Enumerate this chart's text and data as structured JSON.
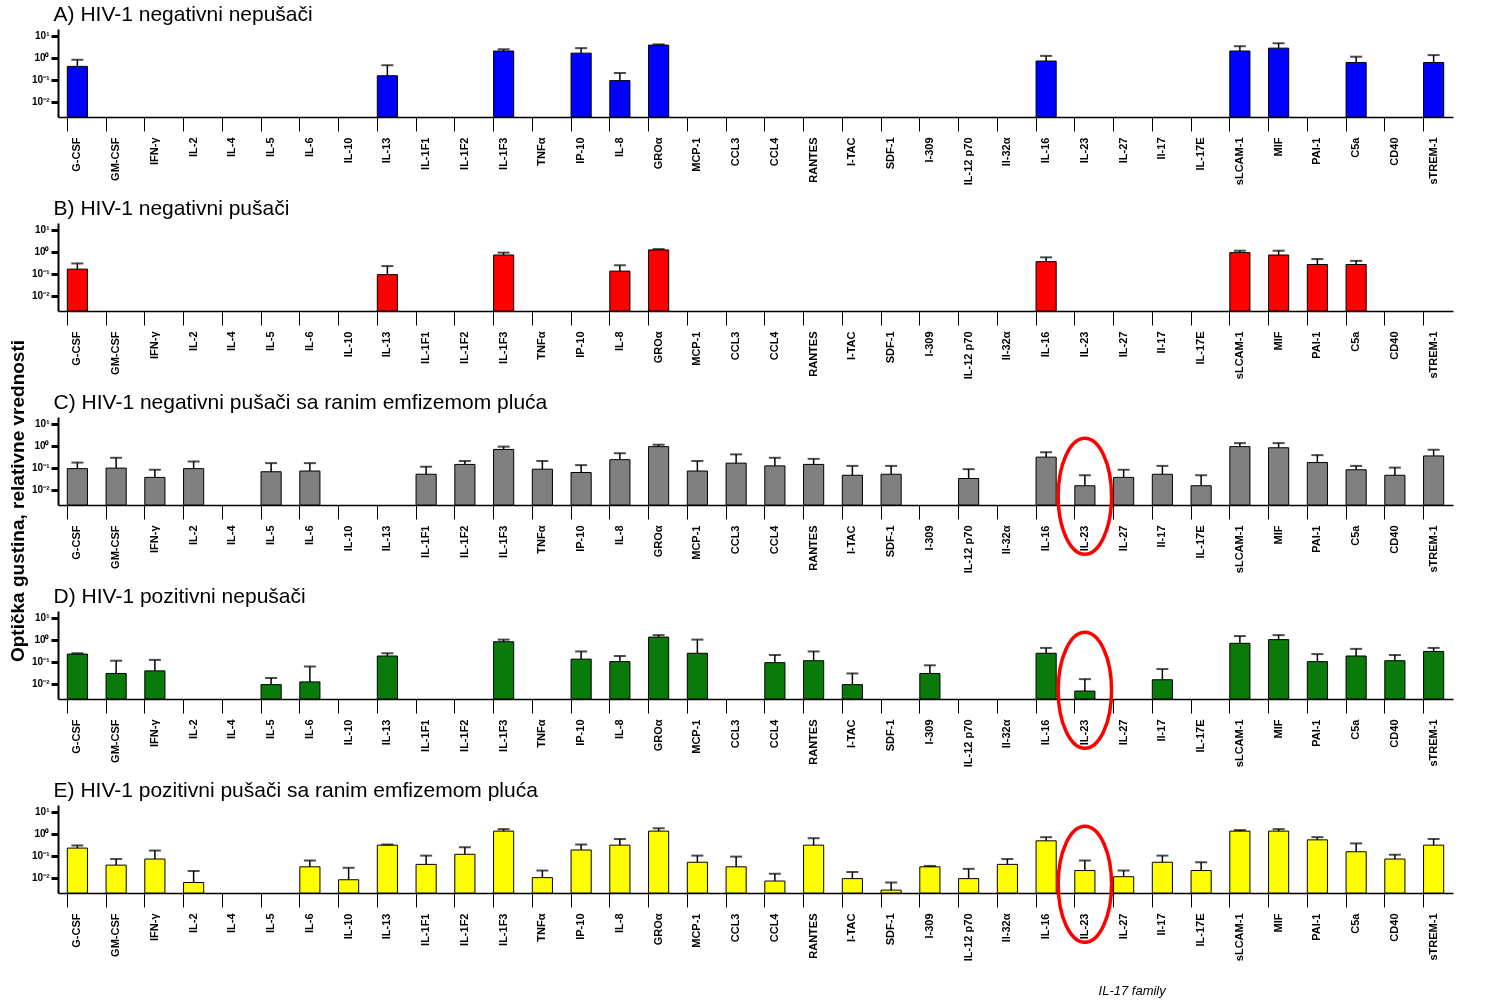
{
  "chart_data": [
    {
      "type": "bar",
      "title": "A) HIV-1 negativni nepušači",
      "categories": [
        "G-CSF",
        "GM-CSF",
        "IFN-γ",
        "IL-2",
        "IL-4",
        "IL-5",
        "IL-6",
        "IL-10",
        "IL-13",
        "IL-1F1",
        "IL-1F2",
        "IL-1F3",
        "TNFα",
        "IP-10",
        "IL-8",
        "GROα",
        "MCP-1",
        "CCL3",
        "CCL4",
        "RANTES",
        "I-TAC",
        "SDF-1",
        "I-309",
        "IL-12 p70",
        "Il-32α",
        "IL-16",
        "IL-23",
        "IL-27",
        "Il-17",
        "IL-17E",
        "sLCAM-1",
        "MIF",
        "PAI-1",
        "C5a",
        "CD40",
        "sTREM-1"
      ],
      "color": "#0000ff",
      "values": [
        0.4,
        null,
        null,
        null,
        null,
        null,
        null,
        null,
        0.15,
        null,
        null,
        2.0,
        null,
        1.6,
        0.09,
        3.7,
        null,
        null,
        null,
        null,
        null,
        null,
        null,
        null,
        null,
        0.7,
        null,
        null,
        null,
        null,
        2.0,
        2.7,
        null,
        0.6,
        null,
        0.6
      ],
      "errors": [
        [
          0.4,
          0.8
        ],
        null,
        null,
        null,
        null,
        null,
        null,
        null,
        [
          0.15,
          0.45
        ],
        null,
        null,
        [
          2.0,
          2.4
        ],
        null,
        [
          1.6,
          2.7
        ],
        [
          0.09,
          0.2
        ],
        [
          3.7,
          4
        ],
        null,
        null,
        null,
        null,
        null,
        null,
        null,
        null,
        null,
        [
          0.7,
          1.2
        ],
        null,
        null,
        null,
        null,
        [
          2.0,
          3.3
        ],
        [
          2.7,
          4.5
        ],
        null,
        [
          0.6,
          1.1
        ],
        null,
        [
          0.6,
          1.3
        ]
      ],
      "log": "y",
      "ylim": [
        0.002,
        20
      ],
      "yticks": [
        {
          "value": 10,
          "label": "10¹"
        },
        {
          "value": 1,
          "label": "10⁰"
        },
        {
          "value": 0.1,
          "label": "10⁻¹"
        },
        {
          "value": 0.01,
          "label": "10⁻²"
        }
      ]
    },
    {
      "type": "bar",
      "title": "B) HIV-1 negativni pušači",
      "categories": [
        "G-CSF",
        "GM-CSF",
        "IFN-γ",
        "IL-2",
        "IL-4",
        "IL-5",
        "IL-6",
        "IL-10",
        "IL-13",
        "IL-1F1",
        "IL-1F2",
        "IL-1F3",
        "TNFα",
        "IP-10",
        "IL-8",
        "GROα",
        "MCP-1",
        "CCL3",
        "CCL4",
        "RANTES",
        "I-TAC",
        "SDF-1",
        "I-309",
        "IL-12 p70",
        "Il-32α",
        "IL-16",
        "IL-23",
        "IL-27",
        "Il-17",
        "IL-17E",
        "sLCAM-1",
        "MIF",
        "PAI-1",
        "C5a",
        "CD40",
        "sTREM-1"
      ],
      "color": "#ff0000",
      "values": [
        0.16,
        null,
        null,
        null,
        null,
        null,
        null,
        null,
        0.09,
        null,
        null,
        0.7,
        null,
        null,
        0.13,
        1.2,
        null,
        null,
        null,
        null,
        null,
        null,
        null,
        null,
        null,
        0.35,
        null,
        null,
        null,
        null,
        0.9,
        0.7,
        0.26,
        0.26,
        null,
        null
      ],
      "errors": [
        [
          0.16,
          0.29
        ],
        null,
        null,
        null,
        null,
        null,
        null,
        null,
        [
          0.09,
          0.22
        ],
        null,
        null,
        [
          0.7,
          0.9
        ],
        null,
        null,
        [
          0.13,
          0.24
        ],
        [
          1.2,
          1.3
        ],
        null,
        null,
        null,
        null,
        null,
        null,
        null,
        null,
        null,
        [
          0.35,
          0.55
        ],
        null,
        null,
        null,
        null,
        [
          0.9,
          1.1
        ],
        [
          0.7,
          1.1
        ],
        [
          0.26,
          0.46
        ],
        [
          0.26,
          0.38
        ],
        null,
        null
      ],
      "log": "y",
      "ylim": [
        0.002,
        20
      ],
      "yticks": [
        {
          "value": 10,
          "label": "10¹"
        },
        {
          "value": 1,
          "label": "10⁰"
        },
        {
          "value": 0.1,
          "label": "10⁻¹"
        },
        {
          "value": 0.01,
          "label": "10⁻²"
        }
      ]
    },
    {
      "type": "bar",
      "title": "C) HIV-1 negativni pušači sa ranim emfizemom pluća",
      "ylabel": "Optička gustina, relativne vrednosti",
      "categories": [
        "G-CSF",
        "GM-CSF",
        "IFN-γ",
        "IL-2",
        "IL-4",
        "IL-5",
        "IL-6",
        "IL-10",
        "IL-13",
        "IL-1F1",
        "IL-1F2",
        "IL-1F3",
        "TNFα",
        "IP-10",
        "IL-8",
        "GROα",
        "MCP-1",
        "CCL3",
        "CCL4",
        "RANTES",
        "I-TAC",
        "SDF-1",
        "I-309",
        "IL-12 p70",
        "Il-32α",
        "IL-16",
        "IL-23",
        "IL-27",
        "Il-17",
        "IL-17E",
        "sLCAM-1",
        "MIF",
        "PAI-1",
        "C5a",
        "CD40",
        "sTREM-1"
      ],
      "color": "#808080",
      "values": [
        0.09,
        0.095,
        0.036,
        0.09,
        null,
        0.065,
        0.07,
        null,
        null,
        0.05,
        0.14,
        0.67,
        0.085,
        0.06,
        0.23,
        0.9,
        0.07,
        0.16,
        0.12,
        0.14,
        0.045,
        0.05,
        null,
        0.032,
        null,
        0.3,
        0.015,
        0.036,
        0.05,
        0.015,
        0.9,
        0.8,
        0.17,
        0.08,
        0.045,
        0.34
      ],
      "errors": [
        [
          0.09,
          0.17
        ],
        [
          0.095,
          0.28
        ],
        [
          0.036,
          0.08
        ],
        [
          0.09,
          0.19
        ],
        null,
        [
          0.065,
          0.16
        ],
        [
          0.07,
          0.16
        ],
        null,
        null,
        [
          0.05,
          0.11
        ],
        [
          0.14,
          0.2
        ],
        [
          0.67,
          0.9
        ],
        [
          0.085,
          0.2
        ],
        [
          0.06,
          0.13
        ],
        [
          0.23,
          0.45
        ],
        [
          0.9,
          1.1
        ],
        [
          0.07,
          0.2
        ],
        [
          0.16,
          0.4
        ],
        [
          0.12,
          0.28
        ],
        [
          0.14,
          0.25
        ],
        [
          0.045,
          0.12
        ],
        [
          0.05,
          0.12
        ],
        null,
        [
          0.032,
          0.085
        ],
        null,
        [
          0.3,
          0.5
        ],
        [
          0.015,
          0.045
        ],
        [
          0.036,
          0.08
        ],
        [
          0.05,
          0.12
        ],
        [
          0.015,
          0.045
        ],
        [
          0.9,
          1.3
        ],
        [
          0.8,
          1.3
        ],
        [
          0.17,
          0.37
        ],
        [
          0.08,
          0.12
        ],
        [
          0.045,
          0.1
        ],
        [
          0.34,
          0.65
        ]
      ],
      "log": "y",
      "ylim": [
        0.002,
        20
      ],
      "yticks": [
        {
          "value": 10,
          "label": "10¹"
        },
        {
          "value": 1,
          "label": "10⁰"
        },
        {
          "value": 0.1,
          "label": "10⁻¹"
        },
        {
          "value": 0.01,
          "label": "10⁻²"
        }
      ]
    },
    {
      "type": "bar",
      "title": "D) HIV-1 pozitivni nepušači",
      "categories": [
        "G-CSF",
        "GM-CSF",
        "IFN-γ",
        "IL-2",
        "IL-4",
        "IL-5",
        "IL-6",
        "IL-10",
        "IL-13",
        "IL-1F1",
        "IL-1F2",
        "IL-1F3",
        "TNFα",
        "IP-10",
        "IL-8",
        "GROα",
        "MCP-1",
        "CCL3",
        "CCL4",
        "RANTES",
        "I-TAC",
        "SDF-1",
        "I-309",
        "IL-12 p70",
        "Il-32α",
        "IL-16",
        "IL-23",
        "IL-27",
        "Il-17",
        "IL-17E",
        "sLCAM-1",
        "MIF",
        "PAI-1",
        "C5a",
        "CD40",
        "sTREM-1"
      ],
      "color": "#0a7a0a",
      "values": [
        0.22,
        0.029,
        0.038,
        null,
        null,
        0.009,
        0.012,
        null,
        0.18,
        null,
        null,
        0.8,
        null,
        0.13,
        0.1,
        1.3,
        0.24,
        null,
        0.09,
        0.11,
        0.009,
        null,
        0.029,
        null,
        null,
        0.24,
        0.0046,
        null,
        0.015,
        null,
        0.68,
        1.0,
        0.1,
        0.18,
        0.11,
        0.29
      ],
      "errors": [
        [
          0.22,
          0.24
        ],
        [
          0.029,
          0.11
        ],
        [
          0.038,
          0.12
        ],
        null,
        null,
        [
          0.009,
          0.018
        ],
        [
          0.012,
          0.06
        ],
        null,
        [
          0.18,
          0.24
        ],
        null,
        null,
        [
          0.8,
          1.0
        ],
        null,
        [
          0.13,
          0.29
        ],
        [
          0.1,
          0.18
        ],
        [
          1.3,
          1.6
        ],
        [
          0.24,
          1.0
        ],
        null,
        [
          0.09,
          0.2
        ],
        [
          0.11,
          0.29
        ],
        [
          0.009,
          0.029
        ],
        null,
        [
          0.029,
          0.068
        ],
        null,
        null,
        [
          0.24,
          0.42
        ],
        [
          0.0046,
          0.016
        ],
        null,
        [
          0.015,
          0.046
        ],
        null,
        [
          0.68,
          1.45
        ],
        [
          1.0,
          1.6
        ],
        [
          0.1,
          0.22
        ],
        [
          0.18,
          0.38
        ],
        [
          0.11,
          0.2
        ],
        [
          0.29,
          0.42
        ]
      ],
      "log": "y",
      "ylim": [
        0.002,
        20
      ],
      "yticks": [
        {
          "value": 10,
          "label": "10¹"
        },
        {
          "value": 1,
          "label": "10⁰"
        },
        {
          "value": 0.1,
          "label": "10⁻¹"
        },
        {
          "value": 0.01,
          "label": "10⁻²"
        }
      ]
    },
    {
      "type": "bar",
      "title": "E) HIV-1 pozitivni pušači sa ranim emfizemom pluća",
      "categories": [
        "G-CSF",
        "GM-CSF",
        "IFN-γ",
        "IL-2",
        "IL-4",
        "IL-5",
        "IL-6",
        "IL-10",
        "IL-13",
        "IL-1F1",
        "IL-1F2",
        "IL-1F3",
        "TNFα",
        "IP-10",
        "IL-8",
        "GROα",
        "MCP-1",
        "CCL3",
        "CCL4",
        "RANTES",
        "I-TAC",
        "SDF-1",
        "I-309",
        "IL-12 p70",
        "Il-32α",
        "IL-16",
        "IL-23",
        "IL-27",
        "Il-17",
        "IL-17E",
        "sLCAM-1",
        "MIF",
        "PAI-1",
        "C5a",
        "CD40",
        "sTREM-1"
      ],
      "color": "#ffff00",
      "values": [
        0.22,
        0.037,
        0.07,
        0.006,
        null,
        null,
        0.031,
        0.008,
        0.3,
        0.04,
        0.115,
        1.3,
        0.01,
        0.18,
        0.3,
        1.3,
        0.05,
        0.031,
        0.007,
        0.3,
        0.009,
        0.0027,
        0.031,
        0.009,
        0.04,
        0.47,
        0.021,
        0.011,
        0.05,
        0.021,
        1.3,
        1.3,
        0.52,
        0.15,
        0.07,
        0.3
      ],
      "errors": [
        [
          0.22,
          0.29
        ],
        [
          0.037,
          0.07
        ],
        [
          0.07,
          0.17
        ],
        [
          0.006,
          0.02
        ],
        null,
        null,
        [
          0.031,
          0.06
        ],
        [
          0.008,
          0.028
        ],
        [
          0.3,
          0.32
        ],
        [
          0.04,
          0.1
        ],
        [
          0.115,
          0.24
        ],
        [
          1.3,
          1.6
        ],
        [
          0.01,
          0.021
        ],
        [
          0.18,
          0.32
        ],
        [
          0.3,
          0.57
        ],
        [
          1.3,
          1.75
        ],
        [
          0.05,
          0.1
        ],
        [
          0.031,
          0.09
        ],
        [
          0.007,
          0.015
        ],
        [
          0.3,
          0.62
        ],
        [
          0.009,
          0.018
        ],
        [
          0.0027,
          0.006
        ],
        [
          0.031,
          0.034
        ],
        [
          0.009,
          0.025
        ],
        [
          0.04,
          0.07
        ],
        [
          0.47,
          0.69
        ],
        [
          0.021,
          0.06
        ],
        [
          0.011,
          0.021
        ],
        [
          0.05,
          0.1
        ],
        [
          0.021,
          0.05
        ],
        [
          1.3,
          1.45
        ],
        [
          1.3,
          1.6
        ],
        [
          0.52,
          0.69
        ],
        [
          0.15,
          0.36
        ],
        [
          0.07,
          0.11
        ],
        [
          0.3,
          0.57
        ]
      ],
      "annotations": [
        "IL-17 family"
      ],
      "log": "y",
      "ylim": [
        0.002,
        20
      ],
      "yticks": [
        {
          "value": 10,
          "label": "10¹"
        },
        {
          "value": 1,
          "label": "10⁰"
        },
        {
          "value": 0.1,
          "label": "10⁻¹"
        },
        {
          "value": 0.01,
          "label": "10⁻²"
        }
      ]
    }
  ]
}
